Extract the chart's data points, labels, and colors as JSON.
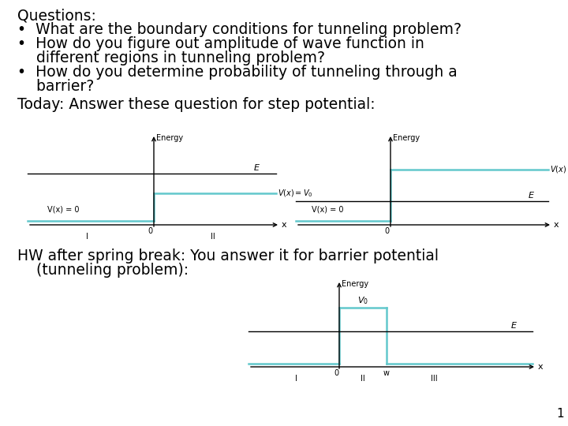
{
  "background_color": "#ffffff",
  "text_color": "#000000",
  "cyan_color": "#62c8cc",
  "title": "Questions:",
  "bullet1": "•  What are the boundary conditions for tunneling problem?",
  "bullet2a": "•  How do you figure out amplitude of wave function in",
  "bullet2b": "    different regions in tunneling problem?",
  "bullet3a": "•  How do you determine probability of tunneling through a",
  "bullet3b": "    barrier?",
  "today_line": "Today: Answer these question for step potential:",
  "hw_line1": "HW after spring break: You answer it for barrier potential",
  "hw_line2": "    (tunneling problem):",
  "footnote": "1",
  "font_size_main": 13.5,
  "font_size_small": 7.5,
  "font_size_label": 7,
  "font_size_italic": 8
}
